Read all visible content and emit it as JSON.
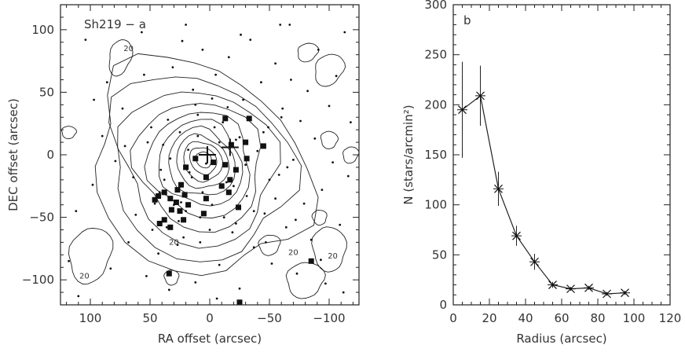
{
  "chart_data": [
    {
      "type": "scatter",
      "panel_label": "Sh219 − a",
      "xlabel": "RA offset (arcsec)",
      "ylabel": "DEC offset (arcsec)",
      "xlim": [
        125,
        -125
      ],
      "ylim": [
        -120,
        120
      ],
      "xticks": [
        100,
        50,
        0,
        -50,
        -100
      ],
      "yticks": [
        100,
        50,
        0,
        -50,
        -100
      ],
      "contour_label": "20",
      "center_cross": [
        2,
        0
      ],
      "ionizing_cross": [
        -17,
        6
      ],
      "small_stars": [
        [
          118,
          -85
        ],
        [
          110,
          -113
        ],
        [
          104,
          92
        ],
        [
          98,
          -24
        ],
        [
          90,
          15
        ],
        [
          86,
          58
        ],
        [
          79,
          -5
        ],
        [
          73,
          37
        ],
        [
          68,
          -70
        ],
        [
          62,
          -48
        ],
        [
          57,
          98
        ],
        [
          53,
          -97
        ],
        [
          49,
          22
        ],
        [
          46,
          -39
        ],
        [
          43,
          -79
        ],
        [
          39,
          8
        ],
        [
          36,
          -58
        ],
        [
          34,
          -108
        ],
        [
          31,
          70
        ],
        [
          28,
          -29
        ],
        [
          25,
          18
        ],
        [
          22,
          -66
        ],
        [
          20,
          104
        ],
        [
          17,
          -14
        ],
        [
          14,
          52
        ],
        [
          12,
          -102
        ],
        [
          10,
          32
        ],
        [
          8,
          -50
        ],
        [
          6,
          84
        ],
        [
          3,
          -7
        ],
        [
          -2,
          -40
        ],
        [
          -5,
          64
        ],
        [
          -8,
          -88
        ],
        [
          -11,
          26
        ],
        [
          -14,
          -22
        ],
        [
          -16,
          78
        ],
        [
          -19,
          -62
        ],
        [
          -22,
          12
        ],
        [
          -25,
          -107
        ],
        [
          -28,
          44
        ],
        [
          -31,
          -33
        ],
        [
          -34,
          92
        ],
        [
          -37,
          -74
        ],
        [
          -40,
          3
        ],
        [
          -43,
          58
        ],
        [
          -46,
          -47
        ],
        [
          -49,
          22
        ],
        [
          -52,
          -87
        ],
        [
          -55,
          73
        ],
        [
          -58,
          -16
        ],
        [
          -61,
          37
        ],
        [
          -64,
          -58
        ],
        [
          -67,
          104
        ],
        [
          -70,
          -4
        ],
        [
          -73,
          -95
        ],
        [
          -76,
          27
        ],
        [
          -79,
          -39
        ],
        [
          -82,
          51
        ],
        [
          -85,
          -68
        ],
        [
          -88,
          13
        ],
        [
          -91,
          84
        ],
        [
          -94,
          -28
        ],
        [
          -97,
          -103
        ],
        [
          -100,
          39
        ],
        [
          -103,
          -6
        ],
        [
          -106,
          63
        ],
        [
          -109,
          -56
        ],
        [
          -113,
          98
        ],
        [
          -116,
          -17
        ],
        [
          -118,
          26
        ],
        [
          112,
          -45
        ],
        [
          97,
          44
        ],
        [
          83,
          -91
        ],
        [
          71,
          7
        ],
        [
          55,
          64
        ],
        [
          41,
          -12
        ],
        [
          23,
          91
        ],
        [
          -6,
          -115
        ],
        [
          -26,
          96
        ],
        [
          -47,
          -70
        ],
        [
          -68,
          60
        ],
        [
          -93,
          -84
        ],
        [
          -112,
          -110
        ],
        [
          -59,
          104
        ],
        [
          26,
          -53
        ],
        [
          -30,
          -8
        ],
        [
          10,
          15
        ],
        [
          24,
          -38
        ],
        [
          38,
          -20
        ],
        [
          -12,
          -50
        ],
        [
          18,
          4
        ],
        [
          -4,
          22
        ],
        [
          30,
          -40
        ],
        [
          -20,
          -25
        ],
        [
          6,
          -30
        ],
        [
          -8,
          10
        ],
        [
          15,
          -18
        ],
        [
          42,
          -30
        ],
        [
          -25,
          14
        ],
        [
          0,
          -60
        ],
        [
          33,
          -3
        ],
        [
          -15,
          38
        ],
        [
          20,
          -45
        ],
        [
          -37,
          -45
        ],
        [
          48,
          -60
        ],
        [
          -22,
          -55
        ],
        [
          12,
          40
        ],
        [
          -45,
          18
        ],
        [
          52,
          10
        ],
        [
          -33,
          30
        ],
        [
          8,
          -70
        ],
        [
          -50,
          -20
        ],
        [
          35,
          28
        ],
        [
          -55,
          -35
        ],
        [
          -2,
          45
        ],
        [
          27,
          -72
        ],
        [
          -60,
          30
        ],
        [
          -65,
          -10
        ],
        [
          64,
          -18
        ],
        [
          -72,
          -52
        ]
      ],
      "large_stars": [
        [
          -13,
          29
        ],
        [
          -33,
          29
        ],
        [
          -30,
          10
        ],
        [
          -18,
          8
        ],
        [
          -31,
          -3
        ],
        [
          -13,
          -8
        ],
        [
          -22,
          -12
        ],
        [
          -17,
          -20
        ],
        [
          -10,
          -25
        ],
        [
          -3,
          -6
        ],
        [
          12,
          -3
        ],
        [
          3,
          -18
        ],
        [
          20,
          -10
        ],
        [
          24,
          -24
        ],
        [
          27,
          -28
        ],
        [
          21,
          -32
        ],
        [
          33,
          -35
        ],
        [
          38,
          -30
        ],
        [
          43,
          -33
        ],
        [
          28,
          -38
        ],
        [
          18,
          -40
        ],
        [
          32,
          -44
        ],
        [
          25,
          -45
        ],
        [
          38,
          -52
        ],
        [
          22,
          -52
        ],
        [
          5,
          -47
        ],
        [
          33,
          -58
        ],
        [
          42,
          -55
        ],
        [
          46,
          -36
        ],
        [
          -16,
          -30
        ],
        [
          -24,
          -42
        ],
        [
          3,
          -35
        ],
        [
          -45,
          7
        ],
        [
          -85,
          -85
        ],
        [
          34,
          -95
        ],
        [
          -25,
          -118
        ]
      ]
    },
    {
      "type": "line",
      "panel_label": "b",
      "xlabel": "Radius (arcsec)",
      "ylabel": "N (stars/arcmin²)",
      "xlim": [
        0,
        120
      ],
      "ylim": [
        0,
        300
      ],
      "xticks": [
        0,
        20,
        40,
        60,
        80,
        100,
        120
      ],
      "yticks": [
        0,
        50,
        100,
        150,
        200,
        250,
        300
      ],
      "x": [
        5,
        15,
        25,
        35,
        45,
        55,
        65,
        75,
        85,
        95
      ],
      "y": [
        195,
        209,
        116,
        69,
        43,
        20,
        16,
        17,
        11,
        12
      ],
      "yerr": [
        48,
        30,
        17,
        10,
        8,
        3,
        2,
        2,
        2,
        2
      ]
    }
  ]
}
